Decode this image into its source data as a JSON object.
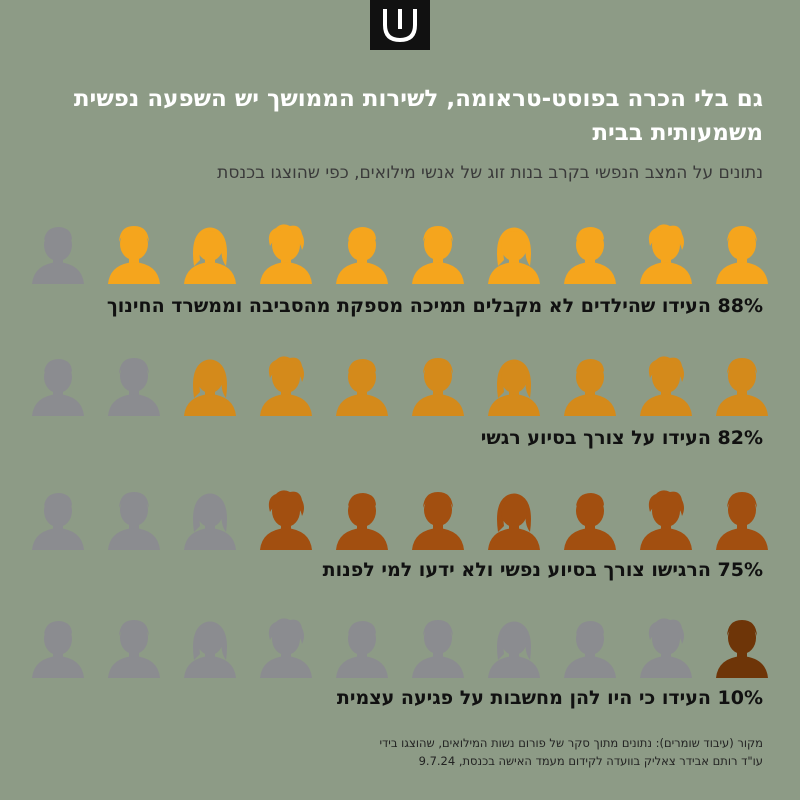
{
  "logo": {
    "icon": "shin-logo-icon"
  },
  "title": "גם בלי הכרה בפוסט-טראומה, לשירות הממושך יש השפעה נפשית משמעותית בבית",
  "subtitle": "נתונים על המצב הנפשי בקרב בנות זוג של אנשי מילואים, כפי שהוצגו בכנסת",
  "colors": {
    "background": "#8d9b86",
    "inactive": "#8b8c90",
    "row1": "#f5a51d",
    "row2": "#d48a1b",
    "row3": "#a24f10",
    "row4": "#6e3508"
  },
  "chart_data": {
    "type": "pictogram",
    "total_icons": 10,
    "rows": [
      {
        "percent": 88,
        "label": "88% העידו שהילדים לא מקבלים תמיכה מספקת מהסביבה וממשרד החינוך",
        "highlighted_icons": 9
      },
      {
        "percent": 82,
        "label": "82% העידו על צורך בסיוע רגשי",
        "highlighted_icons": 8
      },
      {
        "percent": 75,
        "label": "75% הרגישו צורך בסיוע נפשי ולא ידעו למי לפנות",
        "highlighted_icons": 7
      },
      {
        "percent": 10,
        "label": "10% העידו כי היו להן מחשבות על פגיעה עצמית",
        "highlighted_icons": 1
      }
    ]
  },
  "source": {
    "line1": "מקור (עיבוד שומרים): נתונים מתוך סקר של פורום נשות המילואים, שהוצגו בידי",
    "line2": "עו\"ד רותם אבידר צאליק בוועדה לקידום מעמד האישה בכנסת, 9.7.24"
  }
}
